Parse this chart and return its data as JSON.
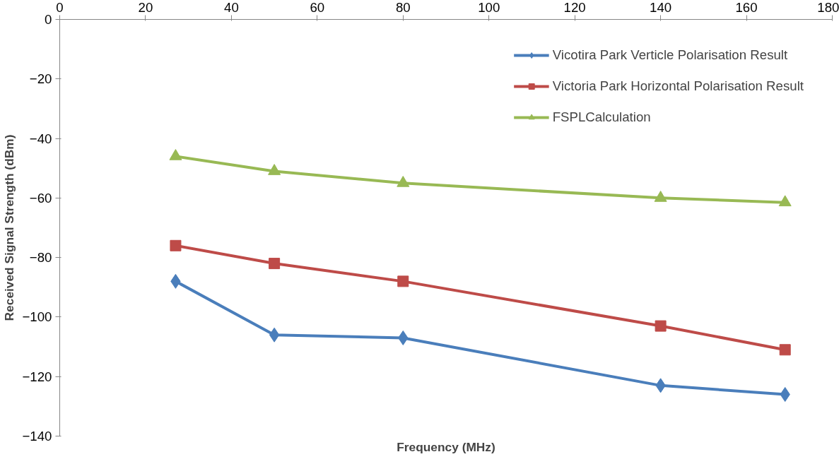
{
  "chart_data": {
    "type": "line",
    "xlabel": "Frequency (MHz)",
    "ylabel": "Received Signal Strength (dBm)",
    "x": [
      27,
      50,
      80,
      140,
      169
    ],
    "series": [
      {
        "name": "Vicotira Park Verticle Polarisation Result",
        "color": "#4a7ebb",
        "marker": "diamond",
        "values": [
          -88,
          -106,
          -107,
          -123,
          -126
        ]
      },
      {
        "name": "Victoria Park Horizontal Polarisation Result",
        "color": "#be4b48",
        "marker": "square",
        "values": [
          -76,
          -82,
          -88,
          -103,
          -111
        ]
      },
      {
        "name": "FSPLCalculation",
        "color": "#98b954",
        "marker": "triangle",
        "values": [
          -46,
          -51,
          -55,
          -60,
          -61.5
        ]
      }
    ],
    "xlim": [
      0,
      180
    ],
    "xticks": [
      0,
      20,
      40,
      60,
      80,
      100,
      120,
      140,
      160,
      180
    ],
    "ylim": [
      -140,
      0
    ],
    "yticks": [
      -140,
      -120,
      -100,
      -80,
      -60,
      -40,
      -20,
      0
    ],
    "grid": false,
    "legend": "top right",
    "line_style": "solid"
  }
}
